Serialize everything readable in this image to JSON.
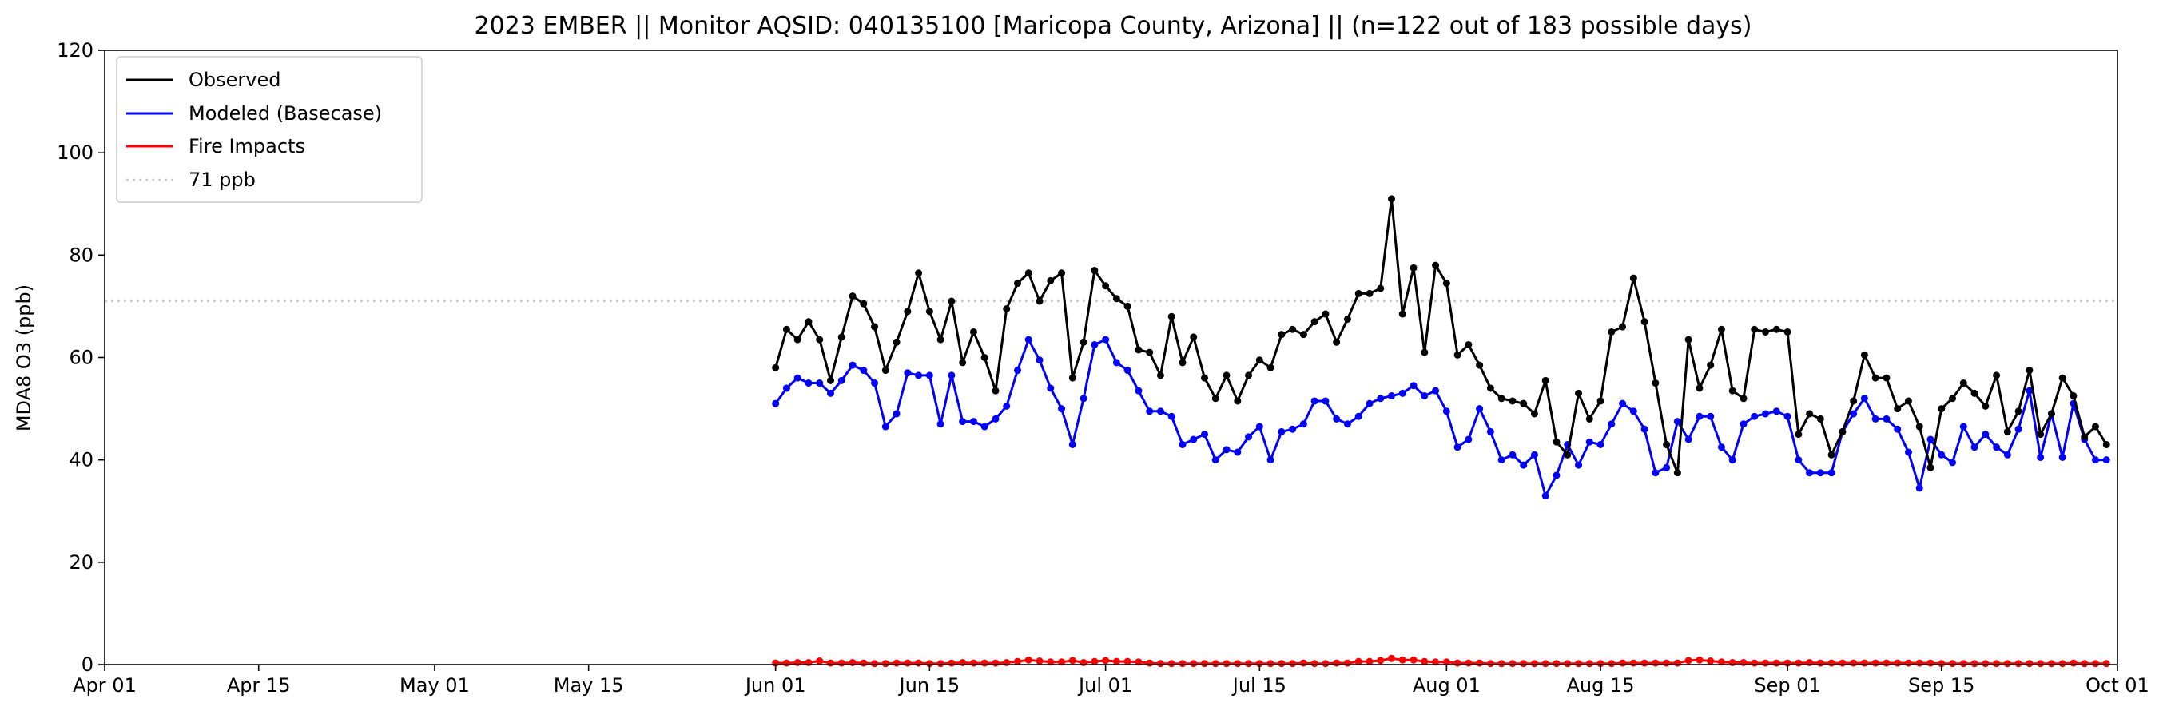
{
  "chart_data": {
    "type": "line",
    "title": "2023 EMBER || Monitor AQSID: 040135100 [Maricopa County, Arizona] || (n=122 out of 183 possible days)",
    "xlabel": "",
    "ylabel": "MDA8 O3 (ppb)",
    "x_axis": {
      "type": "date",
      "range": [
        "2023-04-01",
        "2023-10-01"
      ],
      "ticks": [
        "2023-04-01",
        "2023-04-15",
        "2023-05-01",
        "2023-05-15",
        "2023-06-01",
        "2023-06-15",
        "2023-07-01",
        "2023-07-15",
        "2023-08-01",
        "2023-08-15",
        "2023-09-01",
        "2023-09-15",
        "2023-10-01"
      ],
      "tick_labels": [
        "Apr 01",
        "Apr 15",
        "May 01",
        "May 15",
        "Jun 01",
        "Jun 15",
        "Jul 01",
        "Jul 15",
        "Aug 01",
        "Aug 15",
        "Sep 01",
        "Sep 15",
        "Oct 01"
      ]
    },
    "y_axis": {
      "range": [
        0,
        120
      ],
      "ticks": [
        0,
        20,
        40,
        60,
        80,
        100,
        120
      ]
    },
    "grid": false,
    "legend_position": "top-left",
    "x_start": "2023-06-01",
    "x_step_days": 1,
    "reference_line": {
      "label": "71 ppb",
      "value": 71,
      "color": "#cccccc",
      "style": "dotted"
    },
    "series": [
      {
        "name": "Observed",
        "color": "#000000",
        "values": [
          58,
          65.5,
          63.5,
          67,
          63.5,
          55.5,
          64,
          72,
          70.5,
          66,
          57.5,
          63,
          69,
          76.5,
          69,
          63.5,
          71,
          59,
          65,
          60,
          53.5,
          69.5,
          74.5,
          76.5,
          71,
          75,
          76.5,
          56,
          63,
          77,
          74,
          71.5,
          70,
          61.5,
          61,
          56.5,
          68,
          59,
          64,
          56,
          52,
          56.5,
          51.5,
          56.5,
          59.5,
          58,
          64.5,
          65.5,
          64.5,
          67,
          68.5,
          63,
          67.5,
          72.5,
          72.5,
          73.5,
          91,
          68.5,
          77.5,
          61,
          78,
          74.5,
          60.5,
          62.5,
          58.5,
          54,
          52,
          51.5,
          51,
          49,
          55.5,
          43.5,
          41,
          53,
          48,
          51.5,
          65,
          66,
          75.5,
          67,
          55,
          43,
          37.5,
          63.5,
          54,
          58.5,
          65.5,
          53.5,
          52,
          65.5,
          65,
          65.5,
          65,
          45,
          49,
          48,
          41,
          45.5,
          51.5,
          60.5,
          56,
          56,
          50,
          51.5,
          46.5,
          38.5,
          50,
          52,
          55,
          53,
          50.5,
          56.5,
          45.5,
          49.5,
          57.5,
          45,
          49,
          56,
          52.5,
          44.5,
          46.5,
          43
        ]
      },
      {
        "name": "Modeled (Basecase)",
        "color": "#0000ff",
        "values": [
          51,
          54,
          56,
          55,
          55,
          53,
          55.5,
          58.5,
          57.5,
          55,
          46.5,
          49,
          57,
          56.5,
          56.5,
          47,
          56.5,
          47.5,
          47.5,
          46.5,
          48,
          50.5,
          57.5,
          63.5,
          59.5,
          54,
          50,
          43,
          52,
          62.5,
          63.5,
          59,
          57.5,
          53.5,
          49.5,
          49.5,
          48.5,
          43,
          44,
          45,
          40,
          42,
          41.5,
          44.5,
          46.5,
          40,
          45.5,
          46,
          47,
          51.5,
          51.5,
          48,
          47,
          48.5,
          51,
          52,
          52.5,
          53,
          54.5,
          52.5,
          53.5,
          49.5,
          42.5,
          44,
          50,
          45.5,
          40,
          41,
          39,
          41,
          33,
          37,
          43,
          39,
          43.5,
          43,
          47,
          51,
          49.5,
          46,
          37.5,
          38.5,
          47.5,
          44,
          48.5,
          48.5,
          42.5,
          40,
          47,
          48.5,
          49,
          49.5,
          48.5,
          40,
          37.5,
          37.5,
          37.5,
          45.5,
          49,
          52,
          48,
          48,
          46,
          41.5,
          34.5,
          44,
          41,
          39.5,
          46.5,
          42.5,
          45,
          42.5,
          41,
          46,
          53.5,
          40.5,
          49,
          40.5,
          51,
          44,
          40,
          40
        ]
      },
      {
        "name": "Fire Impacts",
        "color": "#ff0000",
        "values": [
          0.3,
          0.3,
          0.4,
          0.4,
          0.7,
          0.3,
          0.3,
          0.4,
          0.3,
          0.2,
          0.2,
          0.3,
          0.3,
          0.3,
          0.2,
          0.2,
          0.3,
          0.4,
          0.3,
          0.3,
          0.3,
          0.4,
          0.6,
          0.9,
          0.7,
          0.5,
          0.5,
          0.8,
          0.4,
          0.6,
          0.8,
          0.6,
          0.6,
          0.5,
          0.3,
          0.2,
          0.2,
          0.2,
          0.2,
          0.2,
          0.2,
          0.2,
          0.2,
          0.2,
          0.2,
          0.2,
          0.2,
          0.2,
          0.3,
          0.2,
          0.2,
          0.3,
          0.3,
          0.6,
          0.6,
          0.8,
          1.2,
          0.9,
          0.9,
          0.6,
          0.5,
          0.5,
          0.3,
          0.3,
          0.3,
          0.2,
          0.2,
          0.2,
          0.2,
          0.2,
          0.2,
          0.2,
          0.2,
          0.2,
          0.2,
          0.2,
          0.2,
          0.3,
          0.3,
          0.3,
          0.3,
          0.3,
          0.3,
          0.8,
          0.9,
          0.7,
          0.5,
          0.4,
          0.4,
          0.3,
          0.3,
          0.3,
          0.3,
          0.3,
          0.4,
          0.3,
          0.3,
          0.3,
          0.3,
          0.3,
          0.3,
          0.3,
          0.3,
          0.3,
          0.3,
          0.3,
          0.2,
          0.2,
          0.2,
          0.2,
          0.2,
          0.2,
          0.2,
          0.2,
          0.2,
          0.2,
          0.2,
          0.2,
          0.3,
          0.2,
          0.2,
          0.2
        ]
      }
    ]
  }
}
